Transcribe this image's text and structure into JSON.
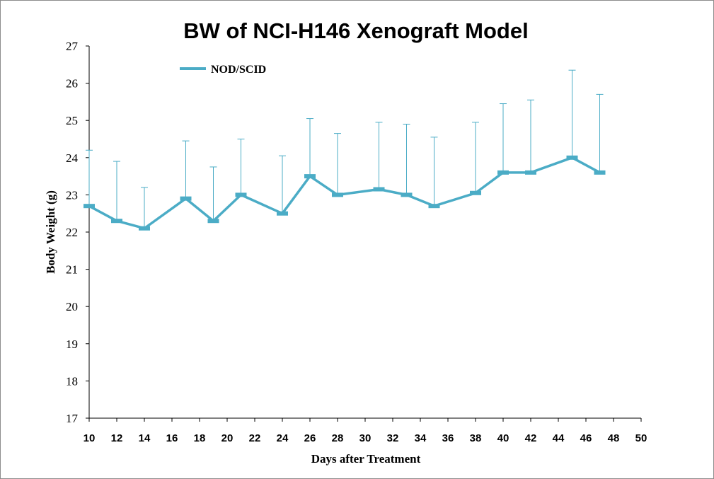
{
  "chart_data": {
    "type": "line",
    "title": "BW of NCI-H146 Xenograft Model",
    "xlabel": "Days after Treatment",
    "ylabel": "Body Weight (g)",
    "xlim": [
      10,
      50
    ],
    "ylim": [
      17,
      27
    ],
    "x_ticks": [
      "10",
      "12",
      "14",
      "16",
      "18",
      "20",
      "22",
      "24",
      "26",
      "28",
      "30",
      "32",
      "34",
      "36",
      "38",
      "40",
      "42",
      "44",
      "46",
      "48",
      "50"
    ],
    "y_ticks": [
      "17",
      "18",
      "19",
      "20",
      "21",
      "22",
      "23",
      "24",
      "25",
      "26",
      "27"
    ],
    "grid": false,
    "legend_position": "top-left",
    "series": [
      {
        "name": "NOD/SCID",
        "color": "#4bacc6",
        "x": [
          10,
          12,
          14,
          17,
          19,
          21,
          24,
          26,
          28,
          31,
          33,
          35,
          38,
          40,
          42,
          45,
          47
        ],
        "y": [
          22.7,
          22.3,
          22.1,
          22.9,
          22.3,
          23.0,
          22.5,
          23.5,
          23.0,
          23.15,
          23.0,
          22.7,
          23.05,
          23.6,
          23.6,
          24.0,
          23.6
        ],
        "error_upper": [
          24.2,
          23.9,
          23.2,
          24.45,
          23.75,
          24.5,
          24.05,
          25.05,
          24.65,
          24.95,
          24.9,
          24.55,
          24.95,
          25.45,
          25.55,
          26.35,
          25.7
        ]
      }
    ]
  }
}
